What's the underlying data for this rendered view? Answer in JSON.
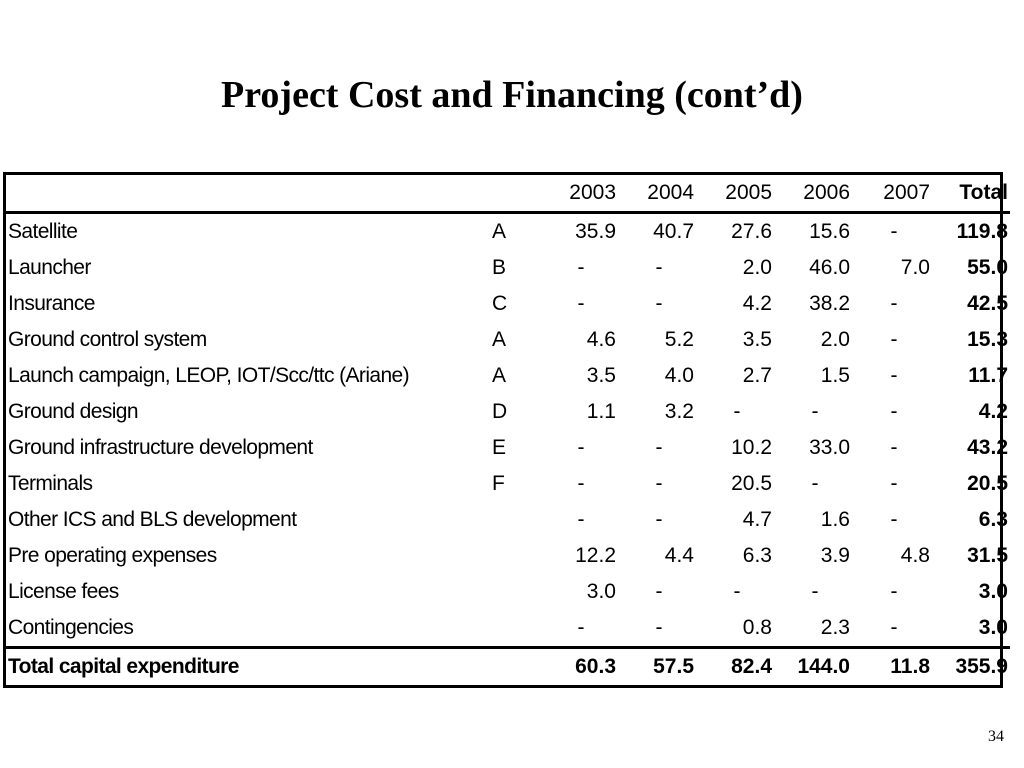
{
  "slide": {
    "title": "Project Cost and Financing (cont’d)",
    "page_number": "34"
  },
  "table": {
    "columns": [
      "",
      "",
      "2003",
      "2004",
      "2005",
      "2006",
      "2007",
      "Total"
    ],
    "rows": [
      {
        "label": "Satellite",
        "code": "A",
        "values": [
          "35.9",
          "40.7",
          "27.6",
          "15.6",
          "-"
        ],
        "total": "119.8"
      },
      {
        "label": "Launcher",
        "code": "B",
        "values": [
          "-",
          "-",
          "2.0",
          "46.0",
          "7.0"
        ],
        "total": "55.0"
      },
      {
        "label": "Insurance",
        "code": "C",
        "values": [
          "-",
          "-",
          "4.2",
          "38.2",
          "-"
        ],
        "total": "42.5"
      },
      {
        "label": "Ground control system",
        "code": "A",
        "values": [
          "4.6",
          "5.2",
          "3.5",
          "2.0",
          "-"
        ],
        "total": "15.3"
      },
      {
        "label": "Launch campaign, LEOP, IOT/Scc/ttc (Ariane)",
        "code": "A",
        "values": [
          "3.5",
          "4.0",
          "2.7",
          "1.5",
          "-"
        ],
        "total": "11.7"
      },
      {
        "label": "Ground design",
        "code": "D",
        "values": [
          "1.1",
          "3.2",
          "-",
          "-",
          "-"
        ],
        "total": "4.2"
      },
      {
        "label": "Ground infrastructure development",
        "code": "E",
        "values": [
          "-",
          "-",
          "10.2",
          "33.0",
          "-"
        ],
        "total": "43.2"
      },
      {
        "label": "Terminals",
        "code": "F",
        "values": [
          "-",
          "-",
          "20.5",
          "-",
          "-"
        ],
        "total": "20.5"
      },
      {
        "label": "Other ICS and BLS development",
        "code": "",
        "values": [
          "-",
          "-",
          "4.7",
          "1.6",
          "-"
        ],
        "total": "6.3"
      },
      {
        "label": "Pre operating expenses",
        "code": "",
        "values": [
          "12.2",
          "4.4",
          "6.3",
          "3.9",
          "4.8"
        ],
        "total": "31.5"
      },
      {
        "label": "License fees",
        "code": "",
        "values": [
          "3.0",
          "-",
          "-",
          "-",
          "-"
        ],
        "total": "3.0"
      },
      {
        "label": "Contingencies",
        "code": "",
        "values": [
          "-",
          "-",
          "0.8",
          "2.3",
          "-"
        ],
        "total": "3.0"
      }
    ],
    "total_row": {
      "label": "Total capital expenditure",
      "values": [
        "60.3",
        "57.5",
        "82.4",
        "144.0",
        "11.8"
      ],
      "total": "355.9"
    }
  }
}
